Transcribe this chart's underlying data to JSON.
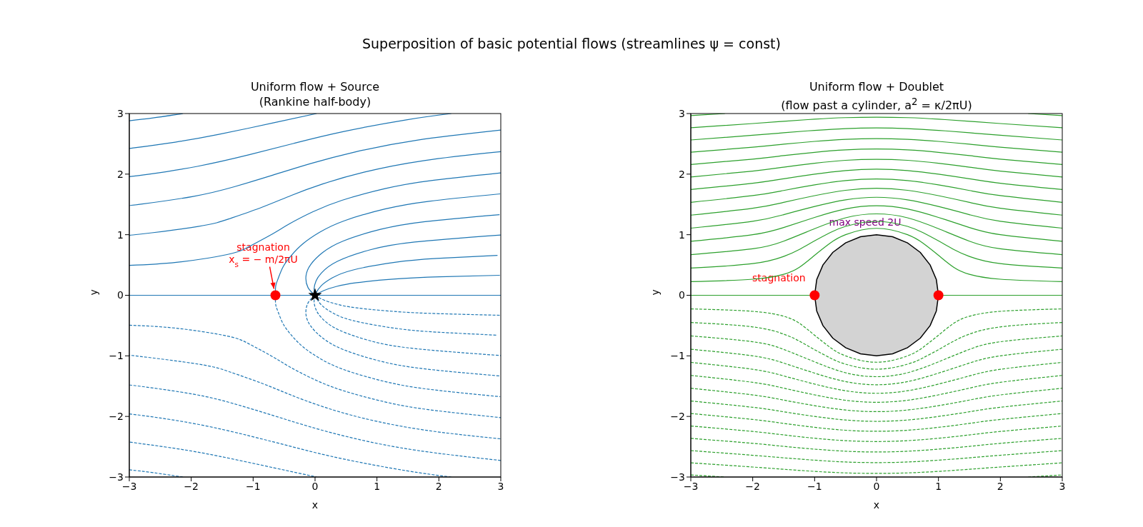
{
  "chart_data": [
    {
      "type": "line",
      "title": "Uniform flow + Source\n(Rankine half-body)",
      "xlabel": "x",
      "ylabel": "y",
      "xlim": [
        -3,
        3
      ],
      "ylim": [
        -3,
        3
      ],
      "xticks": [
        {
          "value": -3,
          "label": "−3"
        },
        {
          "value": -2,
          "label": "−2"
        },
        {
          "value": -1,
          "label": "−1"
        },
        0,
        1,
        2,
        3
      ],
      "yticks": [
        {
          "value": -3,
          "label": "−3"
        },
        {
          "value": -2,
          "label": "−2"
        },
        {
          "value": -1,
          "label": "−1"
        },
        0,
        1,
        2,
        3
      ],
      "annotations": [
        "Superposition of basic potential flows (streamlines ψ = const)",
        {
          "text": "stagnation\nx$_{s}$ = − m/2πU",
          "x": -0.64,
          "y": 0
        }
      ],
      "series": [
        {
          "type": "line",
          "line_style": "solid",
          "color": "#1f77b4",
          "x": [
            -3,
            3
          ],
          "values": [
            0,
            0
          ]
        },
        {
          "type": "line",
          "line_style": "solid",
          "color": "#1f77b4",
          "x": [
            0,
            0.023,
            0.146,
            0.341,
            0.672,
            1.342,
            2.012,
            2.985
          ],
          "values": [
            0,
            0.016,
            0.08,
            0.144,
            0.208,
            0.272,
            0.304,
            0.33
          ]
        },
        {
          "type": "line",
          "line_style": "solid",
          "color": "#1f77b4",
          "x": [
            0,
            0.012,
            0.103,
            0.28,
            0.608,
            1.287,
            1.966,
            2.947
          ],
          "values": [
            0,
            0.032,
            0.16,
            0.288,
            0.416,
            0.544,
            0.608,
            0.659
          ]
        },
        {
          "type": "line",
          "line_style": "solid",
          "color": "#1f77b4",
          "x": [
            0,
            -0.015,
            0.017,
            0.102,
            0.36,
            0.893,
            1.611,
            3.0
          ],
          "values": [
            0,
            0.112,
            0.24,
            0.368,
            0.56,
            0.752,
            0.88,
            0.995
          ]
        },
        {
          "type": "line",
          "line_style": "solid",
          "color": "#1f77b4",
          "x": [
            0,
            -0.114,
            -0.146,
            -0.067,
            0.121,
            0.456,
            1.057,
            1.778,
            2.98
          ],
          "values": [
            0,
            0.128,
            0.32,
            0.512,
            0.704,
            0.896,
            1.088,
            1.216,
            1.331
          ]
        },
        {
          "type": "line",
          "line_style": "solid",
          "color": "#1f77b4",
          "x": [
            -0.64,
            -0.635,
            -0.594,
            -0.515,
            -0.384,
            -0.198,
            0.074,
            0.479,
            1.13,
            1.843,
            2.99
          ],
          "values": [
            0,
            0.154,
            0.281,
            0.472,
            0.656,
            0.848,
            1.04,
            1.232,
            1.424,
            1.552,
            1.674
          ]
        },
        {
          "type": "line",
          "line_style": "solid",
          "color": "#1f77b4",
          "x": [
            -3,
            -2.241,
            -1.422,
            -1.071,
            -0.722,
            -0.405,
            -0.04,
            0.435,
            1.13,
            1.834,
            3
          ],
          "values": [
            0.494,
            0.544,
            0.672,
            0.8,
            0.992,
            1.184,
            1.376,
            1.568,
            1.76,
            1.888,
            2.02
          ]
        },
        {
          "type": "line",
          "line_style": "solid",
          "color": "#1f77b4",
          "x": [
            -3,
            -2.835,
            -1.888,
            -1.38,
            -0.851,
            -0.385,
            0.131,
            0.79,
            1.765,
            3
          ],
          "values": [
            0.994,
            1.008,
            1.136,
            1.264,
            1.456,
            1.648,
            1.84,
            2.032,
            2.224,
            2.37
          ]
        },
        {
          "type": "line",
          "line_style": "solid",
          "color": "#1f77b4",
          "x": [
            -3,
            -2.81,
            -1.969,
            -1.304,
            -0.678,
            -0.064,
            0.657,
            1.644,
            3
          ],
          "values": [
            1.483,
            1.504,
            1.632,
            1.792,
            1.984,
            2.176,
            2.368,
            2.56,
            2.727
          ]
        },
        {
          "type": "line",
          "line_style": "solid",
          "color": "#1f77b4",
          "x": [
            -3,
            -2.677,
            -1.902,
            -1.062,
            -0.326,
            0.466,
            1.474,
            2.2
          ],
          "values": [
            1.959,
            2.0,
            2.128,
            2.32,
            2.512,
            2.704,
            2.896,
            3
          ]
        },
        {
          "type": "line",
          "line_style": "solid",
          "color": "#1f77b4",
          "x": [
            -3,
            -2.934,
            -2.259,
            -1.553,
            -0.665,
            0.025
          ],
          "values": [
            2.424,
            2.432,
            2.528,
            2.656,
            2.848,
            3
          ]
        },
        {
          "type": "line",
          "line_style": "solid",
          "color": "#1f77b4",
          "x": [
            -3,
            -2.617,
            -2.133
          ],
          "values": [
            2.881,
            2.928,
            3
          ]
        },
        {
          "type": "line",
          "line_style": "dashed",
          "color": "#1f77b4",
          "x": [
            0,
            0.023,
            0.146,
            0.341,
            0.672,
            1.342,
            2.012,
            2.985
          ],
          "values": [
            0,
            -0.016,
            -0.08,
            -0.144,
            -0.208,
            -0.272,
            -0.304,
            -0.33
          ]
        },
        {
          "type": "line",
          "line_style": "dashed",
          "color": "#1f77b4",
          "x": [
            0,
            0.012,
            0.103,
            0.28,
            0.608,
            1.287,
            1.966,
            2.947
          ],
          "values": [
            0,
            -0.032,
            -0.16,
            -0.288,
            -0.416,
            -0.544,
            -0.608,
            -0.659
          ]
        },
        {
          "type": "line",
          "line_style": "dashed",
          "color": "#1f77b4",
          "x": [
            0,
            -0.015,
            0.017,
            0.102,
            0.36,
            0.893,
            1.611,
            3.0
          ],
          "values": [
            0,
            -0.112,
            -0.24,
            -0.368,
            -0.56,
            -0.752,
            -0.88,
            -0.995
          ]
        },
        {
          "type": "line",
          "line_style": "dashed",
          "color": "#1f77b4",
          "x": [
            0,
            -0.114,
            -0.146,
            -0.067,
            0.121,
            0.456,
            1.057,
            1.778,
            2.98
          ],
          "values": [
            0,
            -0.128,
            -0.32,
            -0.512,
            -0.704,
            -0.896,
            -1.088,
            -1.216,
            -1.331
          ]
        },
        {
          "type": "line",
          "line_style": "dashed",
          "color": "#1f77b4",
          "x": [
            -0.64,
            -0.635,
            -0.594,
            -0.515,
            -0.384,
            -0.198,
            0.074,
            0.479,
            1.13,
            1.843,
            2.99
          ],
          "values": [
            0,
            -0.154,
            -0.281,
            -0.472,
            -0.656,
            -0.848,
            -1.04,
            -1.232,
            -1.424,
            -1.552,
            -1.674
          ]
        },
        {
          "type": "line",
          "line_style": "dashed",
          "color": "#1f77b4",
          "x": [
            -3,
            -2.241,
            -1.422,
            -1.071,
            -0.722,
            -0.405,
            -0.04,
            0.435,
            1.13,
            1.834,
            3
          ],
          "values": [
            -0.494,
            -0.544,
            -0.672,
            -0.8,
            -0.992,
            -1.184,
            -1.376,
            -1.568,
            -1.76,
            -1.888,
            -2.02
          ]
        },
        {
          "type": "line",
          "line_style": "dashed",
          "color": "#1f77b4",
          "x": [
            -3,
            -2.835,
            -1.888,
            -1.38,
            -0.851,
            -0.385,
            0.131,
            0.79,
            1.765,
            3
          ],
          "values": [
            -0.994,
            -1.008,
            -1.136,
            -1.264,
            -1.456,
            -1.648,
            -1.84,
            -2.032,
            -2.224,
            -2.37
          ]
        },
        {
          "type": "line",
          "line_style": "dashed",
          "color": "#1f77b4",
          "x": [
            -3,
            -2.81,
            -1.969,
            -1.304,
            -0.678,
            -0.064,
            0.657,
            1.644,
            3
          ],
          "values": [
            -1.483,
            -1.504,
            -1.632,
            -1.792,
            -1.984,
            -2.176,
            -2.368,
            -2.56,
            -2.727
          ]
        },
        {
          "type": "line",
          "line_style": "dashed",
          "color": "#1f77b4",
          "x": [
            -3,
            -2.677,
            -1.902,
            -1.062,
            -0.326,
            0.466,
            1.474,
            2.2
          ],
          "values": [
            -1.959,
            -2.0,
            -2.128,
            -2.32,
            -2.512,
            -2.704,
            -2.896,
            -3
          ]
        },
        {
          "type": "line",
          "line_style": "dashed",
          "color": "#1f77b4",
          "x": [
            -3,
            -2.934,
            -2.259,
            -1.553,
            -0.665,
            0.025
          ],
          "values": [
            -2.424,
            -2.432,
            -2.528,
            -2.656,
            -2.848,
            -3
          ]
        },
        {
          "type": "line",
          "line_style": "dashed",
          "color": "#1f77b4",
          "x": [
            -3,
            -2.617,
            -2.133
          ],
          "values": [
            -2.881,
            -2.928,
            -3
          ]
        },
        {
          "type": "scatter",
          "marker": "circle",
          "color": "#ff0000",
          "x": [
            -0.64
          ],
          "values": [
            0
          ]
        },
        {
          "type": "scatter",
          "marker": "star",
          "color": "#000000",
          "x": [
            0
          ],
          "values": [
            0
          ]
        }
      ]
    },
    {
      "type": "line",
      "title": "Uniform flow + Doublet\n(flow past a cylinder, a$^{2}$ = κ/2πU)",
      "xlabel": "x",
      "ylabel": "y",
      "xlim": [
        -3,
        3
      ],
      "ylim": [
        -3,
        3
      ],
      "xticks": [
        {
          "value": -3,
          "label": "−3"
        },
        {
          "value": -2,
          "label": "−2"
        },
        {
          "value": -1,
          "label": "−1"
        },
        0,
        1,
        2,
        3
      ],
      "yticks": [
        {
          "value": -3,
          "label": "−3"
        },
        {
          "value": -2,
          "label": "−2"
        },
        {
          "value": -1,
          "label": "−1"
        },
        0,
        1,
        2,
        3
      ],
      "annotations": [
        {
          "text": "stagnation",
          "x": -1,
          "y": 0
        },
        {
          "text": "max speed 2U",
          "x": 0,
          "y": 1
        }
      ],
      "series": [
        {
          "type": "area",
          "line_style": "solid",
          "color": "#000000",
          "x": [
            1,
            0.966,
            0.866,
            0.707,
            0.5,
            0.259,
            0,
            -0.259,
            -0.5,
            -0.707,
            -0.866,
            -0.966,
            -1,
            -0.966,
            -0.866,
            -0.707,
            -0.5,
            -0.259,
            0,
            0.259,
            0.5,
            0.707,
            0.866,
            0.966,
            1
          ],
          "values": [
            0,
            0.259,
            0.5,
            0.707,
            0.866,
            0.966,
            1,
            0.966,
            0.866,
            0.707,
            0.5,
            0.259,
            0,
            -0.259,
            -0.5,
            -0.707,
            -0.866,
            -0.966,
            -1,
            -0.966,
            -0.866,
            -0.707,
            -0.5,
            -0.259,
            0
          ]
        },
        {
          "type": "line",
          "line_style": "solid",
          "color": "#2ca02c",
          "x": [
            -3,
            -1,
            0,
            1,
            3
          ],
          "values": [
            0,
            0,
            null,
            0,
            0
          ]
        },
        {
          "type": "line",
          "line_style": "solid",
          "color": "#2ca02c",
          "x": [
            -3,
            -2,
            -1.5,
            -1.25,
            -1,
            -0.75,
            -0.5,
            0,
            0.5,
            0.75,
            1,
            1.25,
            1.5,
            2,
            3
          ],
          "values": [
            0.225,
            0.265,
            0.346,
            0.46,
            0.66,
            0.86,
            1.0,
            1.105,
            1.0,
            0.86,
            0.66,
            0.46,
            0.346,
            0.265,
            0.225
          ]
        },
        {
          "type": "line",
          "line_style": "solid",
          "color": "#2ca02c",
          "x": [
            -3,
            -2,
            -1.5,
            -1.25,
            -1,
            -0.75,
            -0.5,
            0,
            0.5,
            0.75,
            1,
            1.25,
            1.5,
            2,
            3
          ],
          "values": [
            0.449,
            0.522,
            0.641,
            0.755,
            0.898,
            1.034,
            1.137,
            1.22,
            1.137,
            1.034,
            0.898,
            0.755,
            0.641,
            0.522,
            0.449
          ]
        },
        {
          "type": "line",
          "line_style": "solid",
          "color": "#2ca02c",
          "x": [
            -3,
            -2,
            -1.5,
            -1,
            -0.5,
            0,
            0.5,
            1,
            1.5,
            2,
            3
          ],
          "values": [
            0.671,
            0.767,
            0.893,
            1.099,
            1.279,
            1.344,
            1.279,
            1.099,
            0.893,
            0.767,
            0.671
          ]
        },
        {
          "type": "line",
          "line_style": "solid",
          "color": "#2ca02c",
          "x": [
            -3,
            -2,
            -1.5,
            -1,
            -0.5,
            0,
            0.5,
            1,
            1.5,
            2,
            3
          ],
          "values": [
            0.891,
            1.0,
            1.119,
            1.285,
            1.425,
            1.477,
            1.425,
            1.285,
            1.119,
            1.0,
            0.891
          ]
        },
        {
          "type": "line",
          "line_style": "solid",
          "color": "#2ca02c",
          "x": [
            -3,
            -2,
            -1.5,
            -1,
            -0.5,
            0,
            0.5,
            1,
            1.5,
            2,
            3
          ],
          "values": [
            1.108,
            1.222,
            1.331,
            1.466,
            1.576,
            1.618,
            1.576,
            1.466,
            1.331,
            1.222,
            1.108
          ]
        },
        {
          "type": "line",
          "line_style": "solid",
          "color": "#2ca02c",
          "x": [
            -3,
            -2,
            -1.5,
            -1,
            -0.5,
            0,
            0.5,
            1,
            1.5,
            2,
            3
          ],
          "values": [
            1.323,
            1.437,
            1.533,
            1.644,
            1.733,
            1.766,
            1.733,
            1.644,
            1.533,
            1.437,
            1.323
          ]
        },
        {
          "type": "line",
          "line_style": "solid",
          "color": "#2ca02c",
          "x": [
            -3,
            -2,
            -1.5,
            -1,
            -0.5,
            0,
            0.5,
            1,
            1.5,
            2,
            3
          ],
          "values": [
            1.535,
            1.645,
            1.73,
            1.822,
            1.894,
            1.921,
            1.894,
            1.822,
            1.73,
            1.645,
            1.535
          ]
        },
        {
          "type": "line",
          "line_style": "solid",
          "color": "#2ca02c",
          "x": [
            -3,
            -2,
            -1.5,
            -1,
            -0.5,
            0,
            0.5,
            1,
            1.5,
            2,
            3
          ],
          "values": [
            1.745,
            1.849,
            1.923,
            2.0,
            2.059,
            2.081,
            2.059,
            2.0,
            1.923,
            1.849,
            1.745
          ]
        },
        {
          "type": "line",
          "line_style": "solid",
          "color": "#2ca02c",
          "x": [
            -3,
            -2,
            -1.5,
            -1,
            -0.5,
            0,
            0.5,
            1,
            1.5,
            2,
            3
          ],
          "values": [
            1.952,
            2.05,
            2.115,
            2.18,
            2.228,
            2.245,
            2.228,
            2.18,
            2.115,
            2.05,
            1.952
          ]
        },
        {
          "type": "line",
          "line_style": "solid",
          "color": "#2ca02c",
          "x": [
            -3,
            -2,
            -1.5,
            -1,
            -0.5,
            0,
            0.5,
            1,
            1.5,
            2,
            3
          ],
          "values": [
            2.158,
            2.248,
            2.305,
            2.36,
            2.4,
            2.414,
            2.4,
            2.36,
            2.305,
            2.248,
            2.158
          ]
        },
        {
          "type": "line",
          "line_style": "solid",
          "color": "#2ca02c",
          "x": [
            -3,
            -2,
            -1.5,
            -1,
            -0.5,
            0,
            0.5,
            1,
            1.5,
            2,
            3
          ],
          "values": [
            2.362,
            2.444,
            2.494,
            2.54,
            2.574,
            2.587,
            2.574,
            2.54,
            2.494,
            2.444,
            2.362
          ]
        },
        {
          "type": "line",
          "line_style": "solid",
          "color": "#2ca02c",
          "x": [
            -3,
            -2,
            -1.5,
            -1,
            -0.5,
            0,
            0.5,
            1,
            1.5,
            2,
            3
          ],
          "values": [
            2.564,
            2.641,
            2.683,
            2.722,
            2.752,
            2.762,
            2.752,
            2.722,
            2.683,
            2.641,
            2.564
          ]
        },
        {
          "type": "line",
          "line_style": "solid",
          "color": "#2ca02c",
          "x": [
            -3,
            -2,
            -1.5,
            -1,
            -0.5,
            0,
            0.5,
            1,
            1.5,
            2,
            3
          ],
          "values": [
            2.766,
            2.835,
            2.872,
            2.907,
            2.932,
            2.94,
            2.932,
            2.907,
            2.872,
            2.835,
            2.766
          ]
        },
        {
          "type": "line",
          "line_style": "solid",
          "color": "#2ca02c",
          "x": [
            -3,
            -2.449,
            0,
            2.449,
            3
          ],
          "values": [
            2.966,
            3,
            null,
            3,
            2.966
          ]
        },
        {
          "type": "line",
          "line_style": "dashed",
          "color": "#2ca02c",
          "x": [
            -3,
            -2,
            -1.5,
            -1.25,
            -1,
            -0.75,
            -0.5,
            0,
            0.5,
            0.75,
            1,
            1.25,
            1.5,
            2,
            3
          ],
          "values": [
            -0.225,
            -0.265,
            -0.346,
            -0.46,
            -0.66,
            -0.86,
            -1.0,
            -1.105,
            -1.0,
            -0.86,
            -0.66,
            -0.46,
            -0.346,
            -0.265,
            -0.225
          ]
        },
        {
          "type": "line",
          "line_style": "dashed",
          "color": "#2ca02c",
          "x": [
            -3,
            -2,
            -1.5,
            -1.25,
            -1,
            -0.75,
            -0.5,
            0,
            0.5,
            0.75,
            1,
            1.25,
            1.5,
            2,
            3
          ],
          "values": [
            -0.449,
            -0.522,
            -0.641,
            -0.755,
            -0.898,
            -1.034,
            -1.137,
            -1.22,
            -1.137,
            -1.034,
            -0.898,
            -0.755,
            -0.641,
            -0.522,
            -0.449
          ]
        },
        {
          "type": "line",
          "line_style": "dashed",
          "color": "#2ca02c",
          "x": [
            -3,
            -2,
            -1.5,
            -1,
            -0.5,
            0,
            0.5,
            1,
            1.5,
            2,
            3
          ],
          "values": [
            -0.671,
            -0.767,
            -0.893,
            -1.099,
            -1.279,
            -1.344,
            -1.279,
            -1.099,
            -0.893,
            -0.767,
            -0.671
          ]
        },
        {
          "type": "line",
          "line_style": "dashed",
          "color": "#2ca02c",
          "x": [
            -3,
            -2,
            -1.5,
            -1,
            -0.5,
            0,
            0.5,
            1,
            1.5,
            2,
            3
          ],
          "values": [
            -0.891,
            -1.0,
            -1.119,
            -1.285,
            -1.425,
            -1.477,
            -1.425,
            -1.285,
            -1.119,
            -1.0,
            -0.891
          ]
        },
        {
          "type": "line",
          "line_style": "dashed",
          "color": "#2ca02c",
          "x": [
            -3,
            -2,
            -1.5,
            -1,
            -0.5,
            0,
            0.5,
            1,
            1.5,
            2,
            3
          ],
          "values": [
            -1.108,
            -1.222,
            -1.331,
            -1.466,
            -1.576,
            -1.618,
            -1.576,
            -1.466,
            -1.331,
            -1.222,
            -1.108
          ]
        },
        {
          "type": "line",
          "line_style": "dashed",
          "color": "#2ca02c",
          "x": [
            -3,
            -2,
            -1.5,
            -1,
            -0.5,
            0,
            0.5,
            1,
            1.5,
            2,
            3
          ],
          "values": [
            -1.323,
            -1.437,
            -1.533,
            -1.644,
            -1.733,
            -1.766,
            -1.733,
            -1.644,
            -1.533,
            -1.437,
            -1.323
          ]
        },
        {
          "type": "line",
          "line_style": "dashed",
          "color": "#2ca02c",
          "x": [
            -3,
            -2,
            -1.5,
            -1,
            -0.5,
            0,
            0.5,
            1,
            1.5,
            2,
            3
          ],
          "values": [
            -1.535,
            -1.645,
            -1.73,
            -1.822,
            -1.894,
            -1.921,
            -1.894,
            -1.822,
            -1.73,
            -1.645,
            -1.535
          ]
        },
        {
          "type": "line",
          "line_style": "dashed",
          "color": "#2ca02c",
          "x": [
            -3,
            -2,
            -1.5,
            -1,
            -0.5,
            0,
            0.5,
            1,
            1.5,
            2,
            3
          ],
          "values": [
            -1.745,
            -1.849,
            -1.923,
            -2.0,
            -2.059,
            -2.081,
            -2.059,
            -2.0,
            -1.923,
            -1.849,
            -1.745
          ]
        },
        {
          "type": "line",
          "line_style": "dashed",
          "color": "#2ca02c",
          "x": [
            -3,
            -2,
            -1.5,
            -1,
            -0.5,
            0,
            0.5,
            1,
            1.5,
            2,
            3
          ],
          "values": [
            -1.952,
            -2.05,
            -2.115,
            -2.18,
            -2.228,
            -2.245,
            -2.228,
            -2.18,
            -2.115,
            -2.05,
            -1.952
          ]
        },
        {
          "type": "line",
          "line_style": "dashed",
          "color": "#2ca02c",
          "x": [
            -3,
            -2,
            -1.5,
            -1,
            -0.5,
            0,
            0.5,
            1,
            1.5,
            2,
            3
          ],
          "values": [
            -2.158,
            -2.248,
            -2.305,
            -2.36,
            -2.4,
            -2.414,
            -2.4,
            -2.36,
            -2.305,
            -2.248,
            -2.158
          ]
        },
        {
          "type": "line",
          "line_style": "dashed",
          "color": "#2ca02c",
          "x": [
            -3,
            -2,
            -1.5,
            -1,
            -0.5,
            0,
            0.5,
            1,
            1.5,
            2,
            3
          ],
          "values": [
            -2.362,
            -2.444,
            -2.494,
            -2.54,
            -2.574,
            -2.587,
            -2.574,
            -2.54,
            -2.494,
            -2.444,
            -2.362
          ]
        },
        {
          "type": "line",
          "line_style": "dashed",
          "color": "#2ca02c",
          "x": [
            -3,
            -2,
            -1.5,
            -1,
            -0.5,
            0,
            0.5,
            1,
            1.5,
            2,
            3
          ],
          "values": [
            -2.564,
            -2.641,
            -2.683,
            -2.722,
            -2.752,
            -2.762,
            -2.752,
            -2.722,
            -2.683,
            -2.641,
            -2.564
          ]
        },
        {
          "type": "line",
          "line_style": "dashed",
          "color": "#2ca02c",
          "x": [
            -3,
            -2,
            -1.5,
            -1,
            -0.5,
            0,
            0.5,
            1,
            1.5,
            2,
            3
          ],
          "values": [
            -2.766,
            -2.835,
            -2.872,
            -2.907,
            -2.932,
            -2.94,
            -2.932,
            -2.907,
            -2.872,
            -2.835,
            -2.766
          ]
        },
        {
          "type": "line",
          "line_style": "dashed",
          "color": "#2ca02c",
          "x": [
            -3,
            -2.449,
            0,
            2.449,
            3
          ],
          "values": [
            -2.966,
            -3,
            null,
            -3,
            -2.966
          ]
        },
        {
          "type": "scatter",
          "marker": "circle",
          "color": "#ff0000",
          "x": [
            -1,
            1
          ],
          "values": [
            0,
            0
          ]
        }
      ]
    }
  ]
}
